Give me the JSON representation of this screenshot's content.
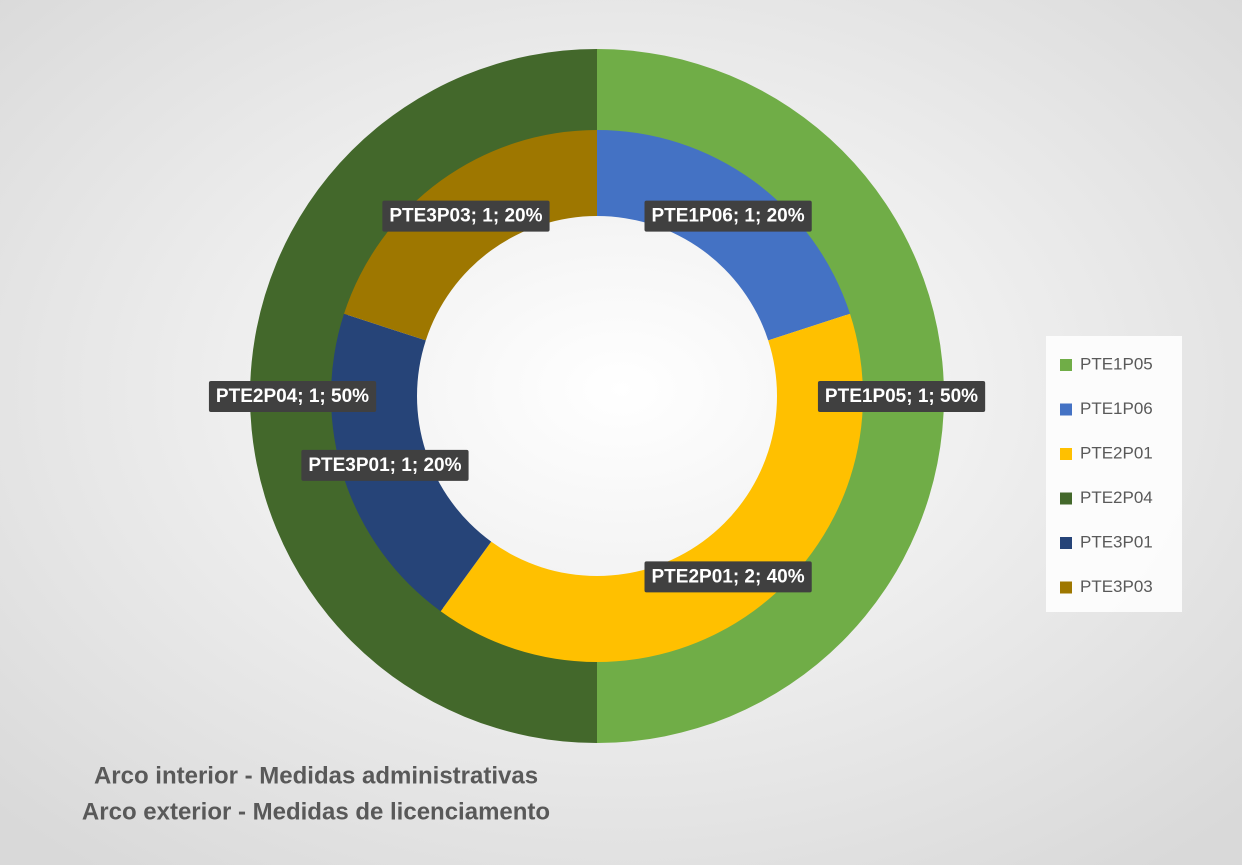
{
  "chart_data": {
    "type": "donut",
    "annotations": [
      "Arco interior - Medidas administrativas",
      "Arco exterior - Medidas de licenciamento"
    ],
    "legend": "right",
    "rings": [
      {
        "categories": [
          "PTE1P05",
          "PTE2P04"
        ],
        "values": [
          1,
          1
        ],
        "colors": [
          "#70ad47",
          "#43682b"
        ],
        "value_labels": [
          "PTE1P05; 1; 50%",
          "PTE2P04; 1; 50%"
        ]
      },
      {
        "categories": [
          "PTE1P06",
          "PTE2P01",
          "PTE3P01",
          "PTE3P03"
        ],
        "values": [
          1,
          2,
          1,
          1
        ],
        "colors": [
          "#4472c4",
          "#ffc000",
          "#264478",
          "#9e7700"
        ],
        "value_labels": [
          "PTE1P06; 1; 20%",
          "PTE2P01; 2; 40%",
          "PTE3P01; 1; 20%",
          "PTE3P03; 1; 20%"
        ]
      }
    ]
  }
}
